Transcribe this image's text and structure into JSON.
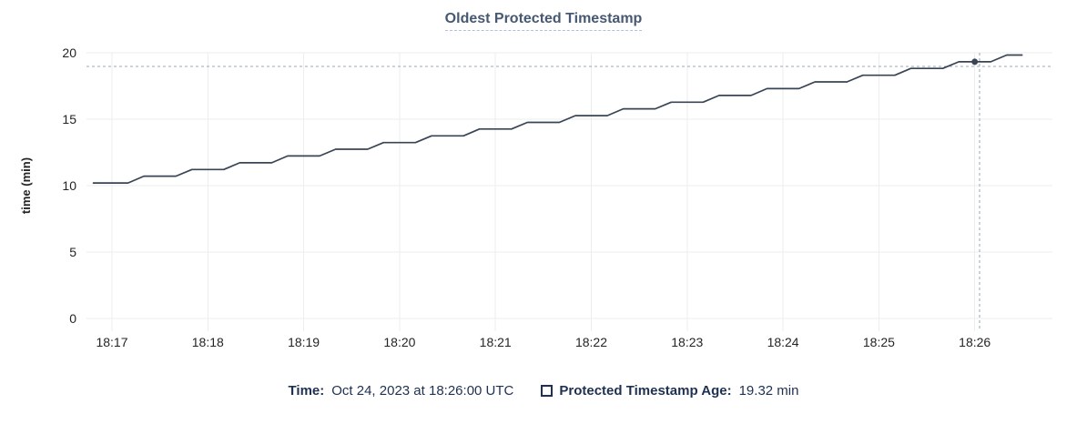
{
  "title": "Oldest Protected Timestamp",
  "legend": {
    "time_label": "Time:",
    "time_value": "Oct 24, 2023 at 18:26:00 UTC",
    "series_label": "Protected Timestamp Age:",
    "series_value": "19.32 min"
  },
  "chart_data": {
    "type": "line",
    "title": "Oldest Protected Timestamp",
    "xlabel": "",
    "ylabel": "time (min)",
    "ylim": [
      0,
      20
    ],
    "y_ticks": [
      0,
      5,
      10,
      15,
      20
    ],
    "x_tick_labels": [
      "18:17",
      "18:18",
      "18:19",
      "18:20",
      "18:21",
      "18:22",
      "18:23",
      "18:24",
      "18:25",
      "18:26"
    ],
    "x_tick_interval_sec": 60,
    "grid": true,
    "legend_position": "bottom",
    "series": [
      {
        "name": "Protected Timestamp Age",
        "unit": "min",
        "points": [
          [
            -12,
            10.2
          ],
          [
            10,
            10.2
          ],
          [
            20,
            10.71
          ],
          [
            40,
            10.71
          ],
          [
            50,
            11.21
          ],
          [
            70,
            11.21
          ],
          [
            80,
            11.72
          ],
          [
            100,
            11.72
          ],
          [
            110,
            12.23
          ],
          [
            130,
            12.23
          ],
          [
            140,
            12.74
          ],
          [
            160,
            12.74
          ],
          [
            170,
            13.24
          ],
          [
            190,
            13.24
          ],
          [
            200,
            13.75
          ],
          [
            220,
            13.75
          ],
          [
            230,
            14.26
          ],
          [
            250,
            14.26
          ],
          [
            260,
            14.76
          ],
          [
            280,
            14.76
          ],
          [
            290,
            15.27
          ],
          [
            310,
            15.27
          ],
          [
            320,
            15.78
          ],
          [
            340,
            15.78
          ],
          [
            350,
            16.28
          ],
          [
            370,
            16.28
          ],
          [
            380,
            16.79
          ],
          [
            400,
            16.79
          ],
          [
            410,
            17.3
          ],
          [
            430,
            17.3
          ],
          [
            440,
            17.81
          ],
          [
            460,
            17.81
          ],
          [
            470,
            18.31
          ],
          [
            490,
            18.31
          ],
          [
            500,
            18.82
          ],
          [
            520,
            18.82
          ],
          [
            530,
            19.32
          ],
          [
            550,
            19.32
          ],
          [
            560,
            19.83
          ],
          [
            570,
            19.83
          ]
        ]
      }
    ],
    "hover_point": {
      "t_sec": 540,
      "value": 19.32,
      "x_label": "18:26",
      "time_text": "Oct 24, 2023 at 18:26:00 UTC"
    },
    "crosshair": {
      "t_sec": 543,
      "y_value": 18.97
    }
  },
  "colors": {
    "line": "#394455",
    "title": "#475872",
    "title_underline": "#b3c0d7",
    "legend_text": "#1e3150",
    "grid": "#ededed",
    "crosshair": "#94a9b4",
    "axis_text": "#242424"
  }
}
